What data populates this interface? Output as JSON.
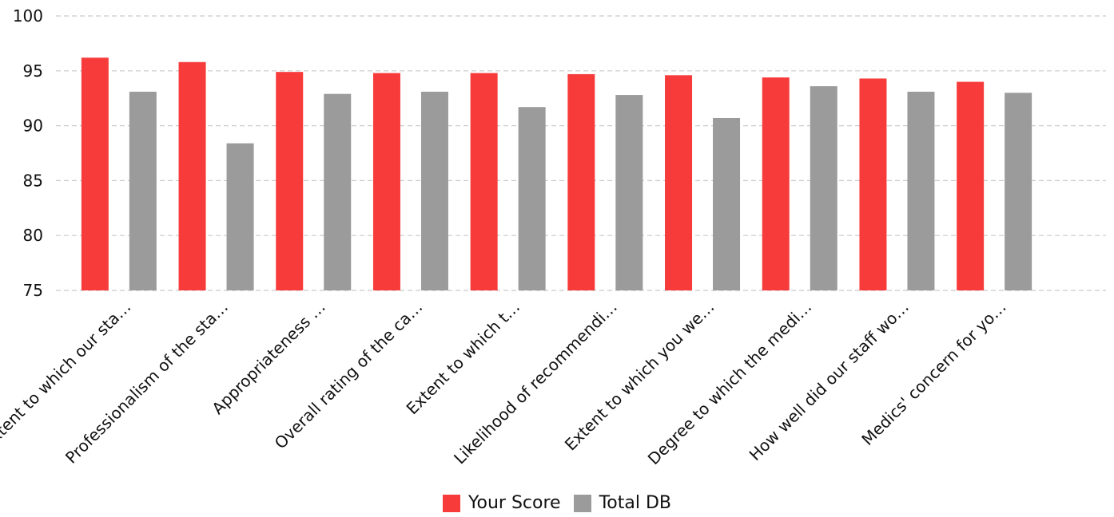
{
  "chart_data": {
    "type": "bar",
    "categories": [
      "Extent to which our sta…",
      "Professionalism of the sta…",
      "Appropriateness …",
      "Overall rating of the ca…",
      "Extent to which t…",
      "Likelihood of recommendi…",
      "Extent to which you we…",
      "Degree to which the medi…",
      "How well did our staff wo…",
      "Medics' concern for yo…"
    ],
    "series": [
      {
        "name": "Your Score",
        "color": "#f73b3b",
        "values": [
          96.2,
          95.8,
          94.9,
          94.8,
          94.8,
          94.7,
          94.6,
          94.4,
          94.3,
          94.0
        ]
      },
      {
        "name": "Total DB",
        "color": "#9b9b9b",
        "values": [
          93.1,
          88.4,
          92.9,
          93.1,
          91.7,
          92.8,
          90.7,
          93.6,
          93.1,
          93.0
        ]
      }
    ],
    "ylim": [
      75,
      100
    ],
    "yticks": [
      "75",
      "80",
      "85",
      "90",
      "95",
      "100"
    ],
    "grid": true,
    "legend_position": "bottom-center"
  }
}
